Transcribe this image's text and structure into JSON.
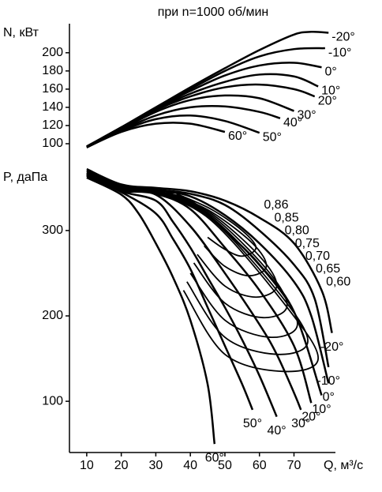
{
  "chart_data": [
    {
      "type": "line",
      "title": "при n=1000 об/мин",
      "y_label": "N, кВт",
      "color": "#000000",
      "xlim": [
        5,
        82
      ],
      "ylim": [
        90,
        225
      ],
      "yticks": [
        100,
        120,
        140,
        160,
        180,
        200
      ],
      "series": [
        {
          "name": "-20°",
          "x": [
            10,
            20,
            30,
            40,
            50,
            60,
            70,
            75,
            80
          ],
          "values": [
            97,
            118,
            140,
            162,
            183,
            203,
            220,
            223,
            222
          ]
        },
        {
          "name": "-10°",
          "x": [
            10,
            20,
            30,
            40,
            50,
            60,
            70,
            79
          ],
          "values": [
            97,
            118,
            140,
            160,
            180,
            196,
            204,
            205
          ]
        },
        {
          "name": "0°",
          "x": [
            10,
            20,
            30,
            40,
            50,
            60,
            70,
            78
          ],
          "values": [
            97,
            118,
            139,
            158,
            175,
            186,
            189,
            184
          ]
        },
        {
          "name": "10°",
          "x": [
            10,
            20,
            30,
            40,
            50,
            60,
            70,
            77
          ],
          "values": [
            97,
            117,
            138,
            155,
            168,
            176,
            174,
            163
          ]
        },
        {
          "name": "20°",
          "x": [
            10,
            20,
            30,
            40,
            50,
            60,
            70,
            76
          ],
          "values": [
            97,
            117,
            137,
            152,
            162,
            165,
            160,
            152
          ]
        },
        {
          "name": "30°",
          "x": [
            10,
            20,
            30,
            40,
            50,
            60,
            70
          ],
          "values": [
            96,
            116,
            135,
            148,
            153,
            150,
            136
          ]
        },
        {
          "name": "40°",
          "x": [
            10,
            20,
            30,
            40,
            50,
            60,
            66
          ],
          "values": [
            96,
            115,
            131,
            140,
            141,
            135,
            128
          ]
        },
        {
          "name": "50°",
          "x": [
            10,
            20,
            30,
            40,
            50,
            60
          ],
          "values": [
            96,
            114,
            127,
            131,
            125,
            112
          ]
        },
        {
          "name": "60°",
          "x": [
            10,
            20,
            30,
            40,
            50
          ],
          "values": [
            96,
            113,
            122,
            122,
            113
          ]
        }
      ]
    },
    {
      "type": "line",
      "y_label": "P, даПа",
      "x_label": "Q, м³/с",
      "color": "#000000",
      "xlim": [
        5,
        82
      ],
      "xticks": [
        10,
        20,
        30,
        40,
        50,
        60,
        70
      ],
      "ylim": [
        40,
        385
      ],
      "yticks": [
        100,
        200,
        300
      ],
      "series": [
        {
          "name": "-20°",
          "x": [
            10,
            20,
            30,
            40,
            50,
            60,
            70,
            78,
            81
          ],
          "values": [
            372,
            354,
            350,
            346,
            335,
            315,
            285,
            230,
            180
          ]
        },
        {
          "name": "-10°",
          "x": [
            10,
            20,
            30,
            40,
            50,
            60,
            70,
            76,
            80
          ],
          "values": [
            370,
            353,
            348,
            343,
            330,
            300,
            260,
            220,
            140
          ]
        },
        {
          "name": "0°",
          "x": [
            10,
            20,
            30,
            40,
            50,
            60,
            70,
            75,
            80
          ],
          "values": [
            370,
            352,
            347,
            340,
            318,
            285,
            240,
            200,
            121
          ]
        },
        {
          "name": "10°",
          "x": [
            10,
            20,
            30,
            40,
            50,
            60,
            70,
            78
          ],
          "values": [
            368,
            350,
            345,
            335,
            300,
            260,
            205,
            107
          ]
        },
        {
          "name": "20°",
          "x": [
            10,
            20,
            30,
            40,
            50,
            60,
            70,
            75
          ],
          "values": [
            367,
            348,
            343,
            325,
            280,
            230,
            165,
            98
          ]
        },
        {
          "name": "30°",
          "x": [
            10,
            20,
            30,
            40,
            50,
            60,
            65,
            70,
            72
          ],
          "values": [
            366,
            347,
            342,
            305,
            250,
            190,
            155,
            110,
            90
          ]
        },
        {
          "name": "40°",
          "x": [
            10,
            20,
            30,
            35,
            40,
            45,
            50,
            55,
            60,
            65
          ],
          "values": [
            365,
            346,
            335,
            310,
            280,
            245,
            210,
            172,
            130,
            82
          ]
        },
        {
          "name": "50°",
          "x": [
            10,
            20,
            30,
            35,
            40,
            45,
            50,
            55,
            58
          ],
          "values": [
            364,
            345,
            320,
            290,
            255,
            210,
            165,
            120,
            90
          ]
        },
        {
          "name": "60°",
          "x": [
            10,
            20,
            25,
            30,
            35,
            40,
            45,
            47
          ],
          "values": [
            362,
            342,
            320,
            285,
            245,
            195,
            120,
            50
          ]
        }
      ],
      "contours": [
        {
          "name": "0,86",
          "x": [
            36,
            46,
            55,
            59,
            55,
            50,
            45
          ],
          "values": [
            343,
            325,
            300,
            280,
            270,
            278,
            292
          ]
        },
        {
          "name": "0,85",
          "x": [
            34,
            46,
            58,
            62,
            57,
            50,
            44
          ],
          "values": [
            344,
            322,
            285,
            258,
            247,
            258,
            282
          ]
        },
        {
          "name": "0,80",
          "x": [
            33,
            46,
            60,
            65,
            59,
            50,
            42
          ],
          "values": [
            345,
            320,
            270,
            235,
            222,
            235,
            272
          ]
        },
        {
          "name": "0,75",
          "x": [
            32,
            46,
            62,
            68,
            61,
            50,
            41
          ],
          "values": [
            345,
            318,
            255,
            212,
            198,
            215,
            262
          ]
        },
        {
          "name": "0,70",
          "x": [
            31,
            46,
            64,
            71,
            63,
            50,
            40
          ],
          "values": [
            346,
            316,
            240,
            190,
            175,
            195,
            250
          ]
        },
        {
          "name": "0,65",
          "x": [
            30,
            46,
            66,
            74,
            65,
            50,
            39
          ],
          "values": [
            346,
            314,
            225,
            170,
            155,
            175,
            240
          ]
        },
        {
          "name": "0,60",
          "x": [
            29,
            46,
            68,
            77,
            67,
            50,
            38
          ],
          "values": [
            346,
            312,
            210,
            150,
            135,
            155,
            230
          ]
        }
      ]
    }
  ]
}
